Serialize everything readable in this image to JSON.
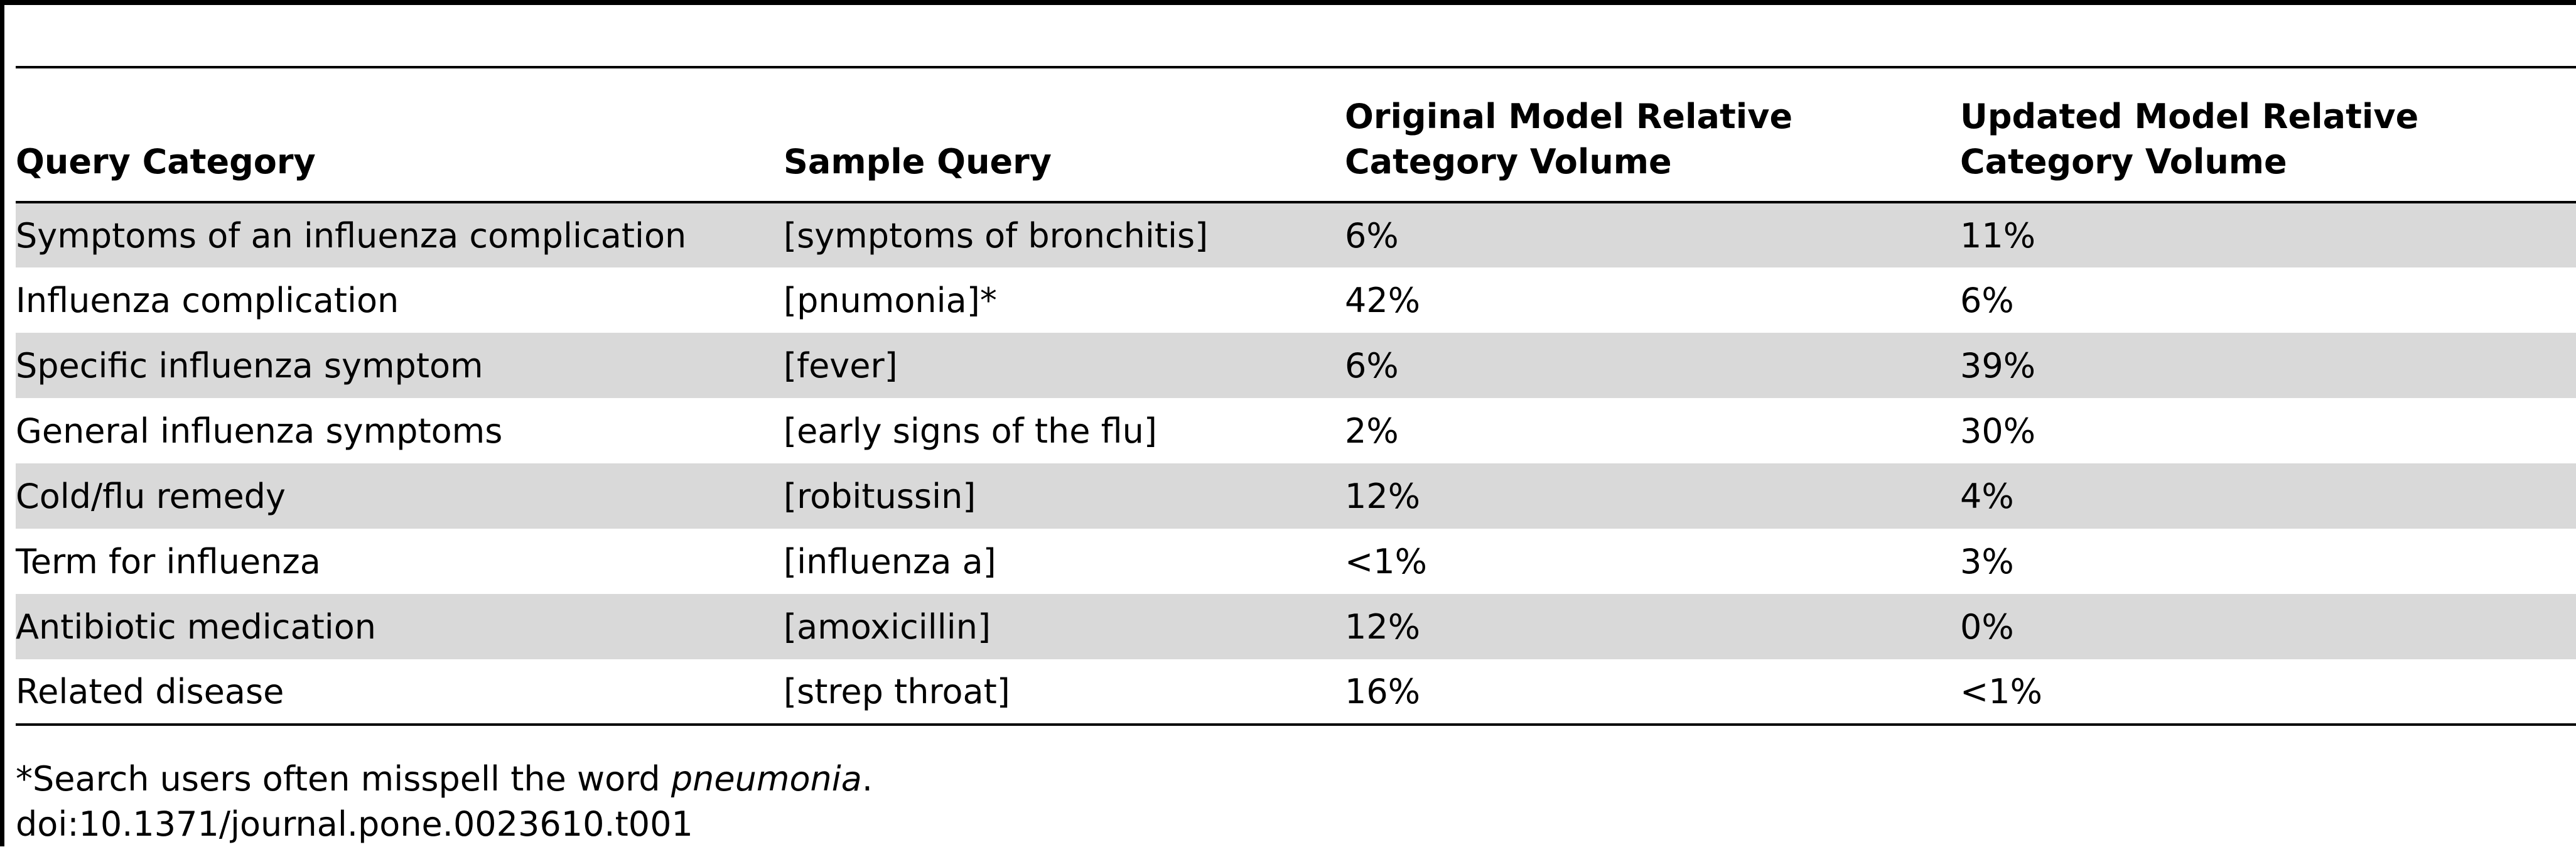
{
  "table": {
    "headers": [
      "Query Category",
      "Sample Query",
      "Original Model Relative Category Volume",
      "Updated Model Relative Category Volume"
    ],
    "rows": [
      [
        "Symptoms of an influenza complication",
        "[symptoms of bronchitis]",
        "6%",
        "11%"
      ],
      [
        "Influenza complication",
        "[pnumonia]*",
        "42%",
        "6%"
      ],
      [
        "Specific influenza symptom",
        "[fever]",
        "6%",
        "39%"
      ],
      [
        "General influenza symptoms",
        "[early signs of the flu]",
        "2%",
        "30%"
      ],
      [
        "Cold/flu remedy",
        "[robitussin]",
        "12%",
        "4%"
      ],
      [
        "Term for influenza",
        "[influenza a]",
        "<1%",
        "3%"
      ],
      [
        "Antibiotic medication",
        "[amoxicillin]",
        "12%",
        "0%"
      ],
      [
        "Related disease",
        "[strep throat]",
        "16%",
        "<1%"
      ]
    ]
  },
  "footnote": {
    "prefix": "*Search users often misspell the word ",
    "emphasis": "pneumonia",
    "suffix": "."
  },
  "doi": "doi:10.1371/journal.pone.0023610.t001"
}
